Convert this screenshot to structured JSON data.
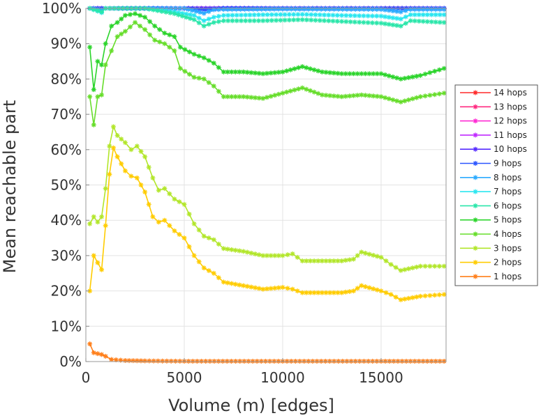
{
  "chart_data": {
    "type": "line",
    "xlabel": "Volume (m) [edges]",
    "ylabel": "Mean reachable part",
    "xlim": [
      0,
      18300
    ],
    "ylim": [
      0,
      100
    ],
    "x_ticks": [
      0,
      5000,
      10000,
      15000
    ],
    "x_tick_labels": [
      "0",
      "5000",
      "10000",
      "15000"
    ],
    "y_ticks": [
      0,
      10,
      20,
      30,
      40,
      50,
      60,
      70,
      80,
      90,
      100
    ],
    "y_tick_labels": [
      "0%",
      "10%",
      "20%",
      "30%",
      "40%",
      "50%",
      "60%",
      "70%",
      "80%",
      "90%",
      "100%"
    ],
    "legend_position": "right",
    "marker": "asterisk",
    "series": [
      {
        "name": "14 hops",
        "color": "#ff2a2a",
        "points": [
          [
            200,
            100
          ],
          [
            1000,
            100
          ],
          [
            5000,
            100
          ],
          [
            10000,
            100
          ],
          [
            15000,
            100
          ],
          [
            18200,
            100
          ]
        ]
      },
      {
        "name": "13 hops",
        "color": "#ff2a80",
        "points": [
          [
            200,
            100
          ],
          [
            1000,
            100
          ],
          [
            5000,
            100
          ],
          [
            10000,
            100
          ],
          [
            15000,
            100
          ],
          [
            18200,
            100
          ]
        ]
      },
      {
        "name": "12 hops",
        "color": "#ff2ad4",
        "points": [
          [
            200,
            100
          ],
          [
            1000,
            100
          ],
          [
            5000,
            100
          ],
          [
            10000,
            100
          ],
          [
            15000,
            100
          ],
          [
            18200,
            100
          ]
        ]
      },
      {
        "name": "11 hops",
        "color": "#c02aff",
        "points": [
          [
            200,
            100
          ],
          [
            1000,
            100
          ],
          [
            5000,
            100
          ],
          [
            10000,
            100
          ],
          [
            15000,
            100
          ],
          [
            18200,
            100
          ]
        ]
      },
      {
        "name": "10 hops",
        "color": "#552aff",
        "points": [
          [
            200,
            100
          ],
          [
            1000,
            100
          ],
          [
            5000,
            100
          ],
          [
            10000,
            100
          ],
          [
            15000,
            100
          ],
          [
            18200,
            100
          ]
        ]
      },
      {
        "name": "9 hops",
        "color": "#2a55ff",
        "points": [
          [
            200,
            100
          ],
          [
            1000,
            100
          ],
          [
            2500,
            100
          ],
          [
            5000,
            100
          ],
          [
            6000,
            99.6
          ],
          [
            7000,
            100
          ],
          [
            10000,
            100
          ],
          [
            15000,
            100
          ],
          [
            18200,
            100
          ]
        ]
      },
      {
        "name": "8 hops",
        "color": "#2aaaff",
        "points": [
          [
            200,
            100
          ],
          [
            800,
            99.5
          ],
          [
            1000,
            100
          ],
          [
            3000,
            100
          ],
          [
            5000,
            100
          ],
          [
            6000,
            98.6
          ],
          [
            6500,
            99.6
          ],
          [
            7000,
            99.7
          ],
          [
            10000,
            99.8
          ],
          [
            15000,
            99.7
          ],
          [
            16000,
            99.0
          ],
          [
            16500,
            99.7
          ],
          [
            18200,
            99.7
          ]
        ]
      },
      {
        "name": "7 hops",
        "color": "#2ae6f0",
        "points": [
          [
            200,
            100
          ],
          [
            800,
            98.8
          ],
          [
            1000,
            100
          ],
          [
            3000,
            100
          ],
          [
            4500,
            99.0
          ],
          [
            5500,
            98.0
          ],
          [
            6000,
            96.5
          ],
          [
            6500,
            97.5
          ],
          [
            7000,
            98.0
          ],
          [
            9000,
            98.2
          ],
          [
            11000,
            98.3
          ],
          [
            13000,
            98.0
          ],
          [
            15000,
            97.8
          ],
          [
            16000,
            97.0
          ],
          [
            16500,
            98.2
          ],
          [
            18200,
            98.2
          ]
        ]
      },
      {
        "name": "6 hops",
        "color": "#2ae6aa",
        "points": [
          [
            200,
            100
          ],
          [
            800,
            99.0
          ],
          [
            1000,
            100
          ],
          [
            3000,
            100
          ],
          [
            4500,
            98.5
          ],
          [
            5500,
            96.8
          ],
          [
            6000,
            95.0
          ],
          [
            6500,
            96.0
          ],
          [
            7000,
            96.5
          ],
          [
            9000,
            96.5
          ],
          [
            11000,
            96.8
          ],
          [
            13000,
            96.3
          ],
          [
            15000,
            95.8
          ],
          [
            16000,
            95.0
          ],
          [
            16500,
            96.5
          ],
          [
            18200,
            96.0
          ]
        ]
      },
      {
        "name": "5 hops",
        "color": "#2ad42a",
        "points": [
          [
            200,
            89
          ],
          [
            400,
            77
          ],
          [
            600,
            85
          ],
          [
            800,
            84
          ],
          [
            1000,
            90
          ],
          [
            1300,
            95
          ],
          [
            1600,
            96
          ],
          [
            2000,
            98
          ],
          [
            2500,
            98.5
          ],
          [
            3000,
            97.5
          ],
          [
            3500,
            95
          ],
          [
            4000,
            93
          ],
          [
            4500,
            92
          ],
          [
            4800,
            89
          ],
          [
            5500,
            87
          ],
          [
            6000,
            86
          ],
          [
            6500,
            84.5
          ],
          [
            7000,
            82
          ],
          [
            8000,
            82
          ],
          [
            9000,
            81.5
          ],
          [
            10000,
            82
          ],
          [
            11000,
            83.5
          ],
          [
            12000,
            82
          ],
          [
            13000,
            81.5
          ],
          [
            14000,
            81.5
          ],
          [
            15000,
            81.5
          ],
          [
            16000,
            80
          ],
          [
            17000,
            81
          ],
          [
            18200,
            83
          ]
        ]
      },
      {
        "name": "4 hops",
        "color": "#66dd2a",
        "points": [
          [
            200,
            75
          ],
          [
            400,
            67
          ],
          [
            600,
            75
          ],
          [
            800,
            75.5
          ],
          [
            1000,
            84
          ],
          [
            1300,
            88
          ],
          [
            1600,
            92
          ],
          [
            2000,
            93.5
          ],
          [
            2500,
            96
          ],
          [
            3000,
            94
          ],
          [
            3500,
            91
          ],
          [
            4000,
            90
          ],
          [
            4500,
            88
          ],
          [
            4800,
            83
          ],
          [
            5500,
            80.5
          ],
          [
            6000,
            80
          ],
          [
            6500,
            78
          ],
          [
            7000,
            75
          ],
          [
            8000,
            75
          ],
          [
            9000,
            74.5
          ],
          [
            10000,
            76
          ],
          [
            11000,
            77.5
          ],
          [
            12000,
            75.5
          ],
          [
            13000,
            75
          ],
          [
            14000,
            75.5
          ],
          [
            15000,
            75
          ],
          [
            16000,
            73.5
          ],
          [
            17000,
            75
          ],
          [
            18200,
            76
          ]
        ]
      },
      {
        "name": "3 hops",
        "color": "#b2e62a",
        "points": [
          [
            200,
            39
          ],
          [
            400,
            41
          ],
          [
            600,
            39.5
          ],
          [
            800,
            41
          ],
          [
            1000,
            49
          ],
          [
            1200,
            61
          ],
          [
            1400,
            66.5
          ],
          [
            1600,
            64
          ],
          [
            2000,
            62
          ],
          [
            2300,
            60
          ],
          [
            2600,
            61
          ],
          [
            3000,
            58
          ],
          [
            3400,
            52
          ],
          [
            3700,
            48.5
          ],
          [
            4000,
            49
          ],
          [
            4500,
            46
          ],
          [
            5000,
            44.5
          ],
          [
            5500,
            39
          ],
          [
            6000,
            35.5
          ],
          [
            6500,
            34.5
          ],
          [
            7000,
            32
          ],
          [
            8000,
            31.2
          ],
          [
            9000,
            30
          ],
          [
            10000,
            30
          ],
          [
            10500,
            30.5
          ],
          [
            11000,
            28.5
          ],
          [
            12000,
            28.5
          ],
          [
            13000,
            28.5
          ],
          [
            13600,
            29
          ],
          [
            14000,
            31
          ],
          [
            15000,
            29.5
          ],
          [
            15500,
            27.5
          ],
          [
            16000,
            25.8
          ],
          [
            17000,
            27
          ],
          [
            18200,
            27
          ]
        ]
      },
      {
        "name": "2 hops",
        "color": "#ffcc00",
        "points": [
          [
            200,
            20
          ],
          [
            400,
            30
          ],
          [
            600,
            28
          ],
          [
            800,
            26
          ],
          [
            1000,
            38.5
          ],
          [
            1200,
            53
          ],
          [
            1400,
            60.5
          ],
          [
            1600,
            58
          ],
          [
            2000,
            54
          ],
          [
            2300,
            52.5
          ],
          [
            2600,
            52
          ],
          [
            3000,
            48
          ],
          [
            3400,
            41
          ],
          [
            3700,
            39.5
          ],
          [
            4000,
            40
          ],
          [
            4500,
            37
          ],
          [
            5000,
            35
          ],
          [
            5500,
            30
          ],
          [
            6000,
            26.5
          ],
          [
            6500,
            25
          ],
          [
            7000,
            22.5
          ],
          [
            8000,
            21.5
          ],
          [
            9000,
            20.5
          ],
          [
            10000,
            21
          ],
          [
            10500,
            20.5
          ],
          [
            11000,
            19.5
          ],
          [
            12000,
            19.5
          ],
          [
            13000,
            19.5
          ],
          [
            13600,
            20
          ],
          [
            14000,
            21.5
          ],
          [
            15000,
            20
          ],
          [
            15500,
            19
          ],
          [
            16000,
            17.5
          ],
          [
            17000,
            18.5
          ],
          [
            18200,
            19
          ]
        ]
      },
      {
        "name": "1 hops",
        "color": "#ff7f1a",
        "points": [
          [
            200,
            5
          ],
          [
            400,
            2.5
          ],
          [
            800,
            2
          ],
          [
            1000,
            1.5
          ],
          [
            1300,
            0.6
          ],
          [
            2000,
            0.3
          ],
          [
            3000,
            0.2
          ],
          [
            5000,
            0.1
          ],
          [
            10000,
            0.1
          ],
          [
            15000,
            0.1
          ],
          [
            18200,
            0.1
          ]
        ]
      }
    ]
  }
}
